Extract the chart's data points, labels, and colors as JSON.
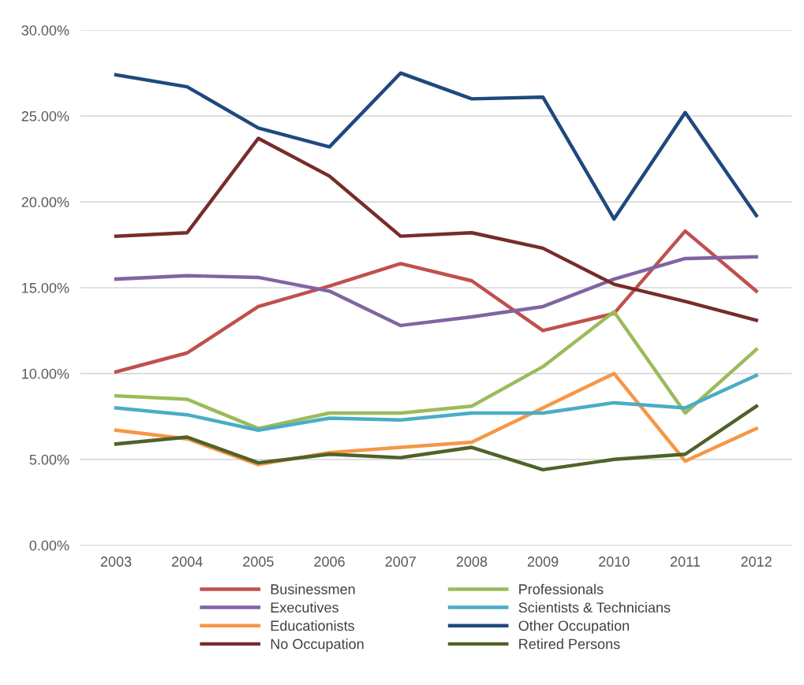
{
  "chart_data": {
    "type": "line",
    "categories": [
      "2003",
      "2004",
      "2005",
      "2006",
      "2007",
      "2008",
      "2009",
      "2010",
      "2011",
      "2012"
    ],
    "series": [
      {
        "name": "Businessmen",
        "color": "#c0504d",
        "values": [
          10.1,
          11.2,
          13.9,
          15.1,
          16.4,
          15.4,
          12.5,
          13.5,
          18.3,
          14.8
        ]
      },
      {
        "name": "Executives",
        "color": "#8064a2",
        "values": [
          15.5,
          15.7,
          15.6,
          14.8,
          12.8,
          13.3,
          13.9,
          15.5,
          16.7,
          16.8
        ]
      },
      {
        "name": "Educationists",
        "color": "#f79646",
        "values": [
          6.7,
          6.2,
          4.7,
          5.4,
          5.7,
          6.0,
          8.0,
          10.0,
          4.9,
          6.8
        ]
      },
      {
        "name": "No Occupation",
        "color": "#772c2a",
        "values": [
          18.0,
          18.2,
          23.7,
          21.5,
          18.0,
          18.2,
          17.3,
          15.2,
          14.2,
          13.1
        ]
      },
      {
        "name": "Professionals",
        "color": "#9bbb59",
        "values": [
          8.7,
          8.5,
          6.8,
          7.7,
          7.7,
          8.1,
          10.4,
          13.6,
          7.7,
          11.4
        ]
      },
      {
        "name": "Scientists & Technicians",
        "color": "#4bacc6",
        "values": [
          8.0,
          7.6,
          6.7,
          7.4,
          7.3,
          7.7,
          7.7,
          8.3,
          8.0,
          9.9
        ]
      },
      {
        "name": "Other Occupation",
        "color": "#1f497d",
        "values": [
          27.4,
          26.7,
          24.3,
          23.2,
          27.5,
          26.0,
          26.1,
          19.0,
          25.2,
          19.2
        ]
      },
      {
        "name": "Retired Persons",
        "color": "#4f6228",
        "values": [
          5.9,
          6.3,
          4.8,
          5.3,
          5.1,
          5.7,
          4.4,
          5.0,
          5.3,
          8.1
        ]
      }
    ],
    "ylim": [
      0,
      30
    ],
    "yticks": [
      {
        "value": 0,
        "label": "0.00%"
      },
      {
        "value": 5,
        "label": "5.00%"
      },
      {
        "value": 10,
        "label": "10.00%"
      },
      {
        "value": 15,
        "label": "15.00%"
      },
      {
        "value": 20,
        "label": "20.00%"
      },
      {
        "value": 25,
        "label": "25.00%"
      },
      {
        "value": 30,
        "label": "30.00%"
      }
    ],
    "grid": "y",
    "legend": "bottom",
    "marker": "none",
    "line_style": "solid"
  }
}
